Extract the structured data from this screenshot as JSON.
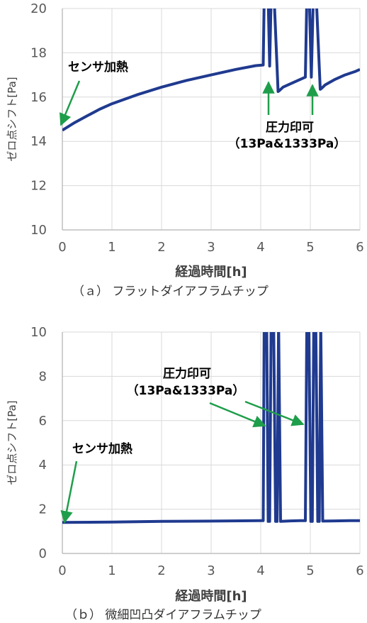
{
  "colors": {
    "series": "#1f3a8f",
    "annotation": "#1e9e4a",
    "grid": "#d9d9d9",
    "axis": "#bfbfbf"
  },
  "chart_data": [
    {
      "type": "line",
      "xlabel": "経過時間[h]",
      "ylabel": "ゼロ点シフト[Pa]",
      "caption": "（ａ） フラットダイアフラムチップ",
      "xlim": [
        0,
        6
      ],
      "ylim": [
        10,
        20
      ],
      "x_ticks": [
        "0",
        "1",
        "2",
        "3",
        "4",
        "5",
        "6"
      ],
      "y_ticks": [
        "10",
        "12",
        "14",
        "16",
        "18",
        "20"
      ],
      "grid": true,
      "annotations": [
        {
          "text": "センサ加熱"
        },
        {
          "text": "圧力印可"
        },
        {
          "text": "（13Pa&1333Pa）"
        }
      ],
      "series": [
        {
          "x": [
            0,
            0.25,
            0.5,
            0.75,
            1,
            1.5,
            2,
            2.5,
            3,
            3.5,
            3.9,
            4.05,
            4.07,
            4.15,
            4.18,
            4.21,
            4.27,
            4.35,
            4.38,
            4.45,
            4.6,
            4.8,
            4.9,
            4.93,
            4.98,
            5.02,
            5.06,
            5.12,
            5.2,
            5.23,
            5.3,
            5.5,
            5.7,
            5.9,
            6
          ],
          "y": [
            14.5,
            14.85,
            15.15,
            15.45,
            15.7,
            16.1,
            16.45,
            16.75,
            17.0,
            17.25,
            17.42,
            17.45,
            20.5,
            20.5,
            17.4,
            20.5,
            20.5,
            16.25,
            16.3,
            16.45,
            16.6,
            16.8,
            16.9,
            20.5,
            20.5,
            16.9,
            20.5,
            20.5,
            16.35,
            16.4,
            16.55,
            16.8,
            17.0,
            17.15,
            17.25
          ]
        }
      ]
    },
    {
      "type": "line",
      "xlabel": "経過時間[h]",
      "ylabel": "ゼロ点シフト[Pa]",
      "caption": "（ｂ） 微細凹凸ダイアフラムチップ",
      "xlim": [
        0,
        6
      ],
      "ylim": [
        0,
        10
      ],
      "x_ticks": [
        "0",
        "1",
        "2",
        "3",
        "4",
        "5",
        "6"
      ],
      "y_ticks": [
        "0",
        "2",
        "4",
        "6",
        "8",
        "10"
      ],
      "grid": true,
      "annotations": [
        {
          "text": "圧力印可"
        },
        {
          "text": "（13Pa&1333Pa）"
        },
        {
          "text": "センサ加熱"
        }
      ],
      "series": [
        {
          "x": [
            0,
            1,
            2,
            3,
            4,
            4.05,
            4.07,
            4.12,
            4.15,
            4.18,
            4.21,
            4.26,
            4.3,
            4.33,
            4.36,
            4.4,
            4.6,
            4.8,
            4.9,
            4.93,
            4.97,
            5.01,
            5.04,
            5.07,
            5.11,
            5.15,
            5.18,
            5.21,
            5.25,
            5.5,
            5.8,
            6
          ],
          "y": [
            1.4,
            1.42,
            1.45,
            1.46,
            1.48,
            1.48,
            10.5,
            10.5,
            1.45,
            1.45,
            10.5,
            10.5,
            1.45,
            1.45,
            10.5,
            1.45,
            1.47,
            1.48,
            1.48,
            10.5,
            10.5,
            1.45,
            1.45,
            10.5,
            10.5,
            1.45,
            1.45,
            10.5,
            1.46,
            1.47,
            1.48,
            1.48
          ]
        }
      ]
    }
  ]
}
